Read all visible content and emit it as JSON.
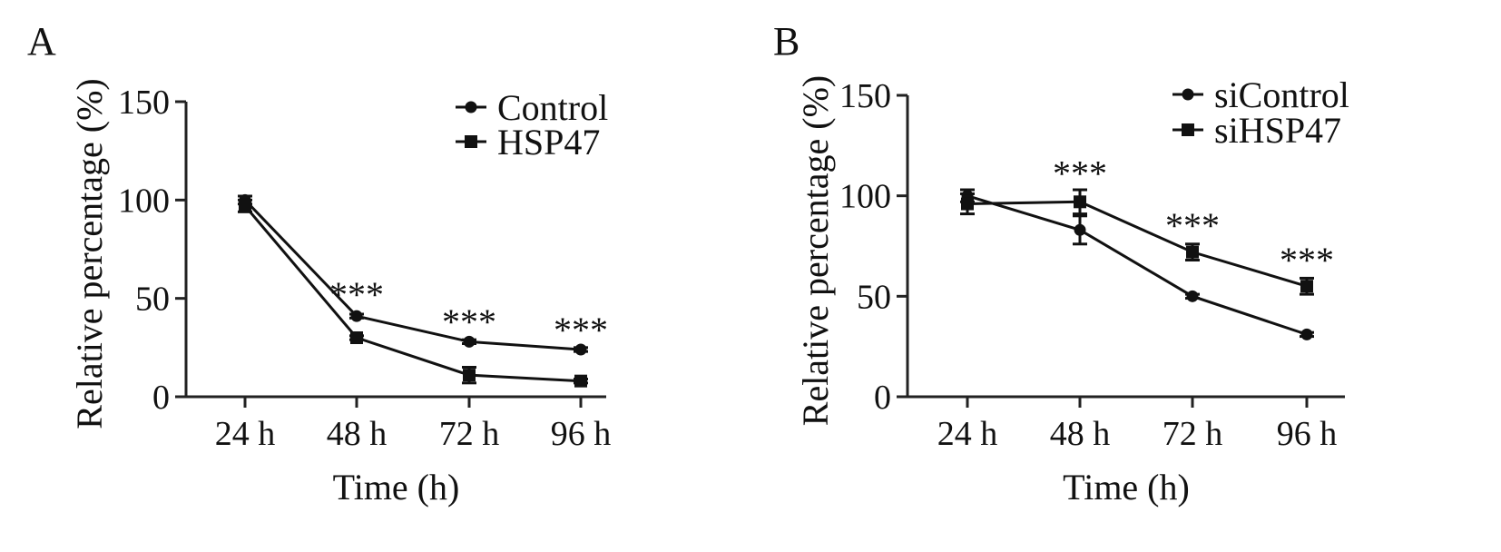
{
  "panels": [
    {
      "panel_label": "A",
      "significance_marker": "***",
      "colors": {
        "series": "#111111",
        "axes": "#222222"
      },
      "chart_data": {
        "type": "line",
        "categories": [
          "24 h",
          "48 h",
          "72 h",
          "96 h"
        ],
        "xlabel": "Time (h)",
        "ylabel": "Relative percentage (%)",
        "ylim": [
          0,
          150
        ],
        "yticks": [
          0,
          50,
          100,
          150
        ],
        "grid": false,
        "legend_position": "top-right",
        "series": [
          {
            "name": "Control",
            "marker": "circle",
            "values": [
              100,
              41,
              28,
              24
            ],
            "errors": [
              2,
              1,
              1,
              1
            ]
          },
          {
            "name": "HSP47",
            "marker": "square",
            "values": [
              97,
              30,
              11,
              8
            ],
            "errors": [
              3,
              1,
              4,
              1
            ]
          }
        ],
        "significance": [
          {
            "category": "48 h",
            "y": 55
          },
          {
            "category": "72 h",
            "y": 41
          },
          {
            "category": "96 h",
            "y": 37
          }
        ]
      }
    },
    {
      "panel_label": "B",
      "significance_marker": "***",
      "colors": {
        "series": "#111111",
        "axes": "#222222"
      },
      "chart_data": {
        "type": "line",
        "categories": [
          "24 h",
          "48 h",
          "72 h",
          "96 h"
        ],
        "xlabel": "Time (h)",
        "ylabel": "Relative percentage (%)",
        "ylim": [
          0,
          150
        ],
        "yticks": [
          0,
          50,
          100,
          150
        ],
        "grid": false,
        "legend_position": "top-right",
        "series": [
          {
            "name": "siControl",
            "marker": "circle",
            "values": [
              100,
              83,
              50,
              31
            ],
            "errors": [
              3,
              7,
              1,
              1
            ]
          },
          {
            "name": "siHSP47",
            "marker": "square",
            "values": [
              96,
              97,
              72,
              55
            ],
            "errors": [
              5,
              6,
              4,
              4
            ]
          }
        ],
        "significance": [
          {
            "category": "48 h",
            "y": 114
          },
          {
            "category": "72 h",
            "y": 88
          },
          {
            "category": "96 h",
            "y": 71
          }
        ]
      }
    }
  ]
}
